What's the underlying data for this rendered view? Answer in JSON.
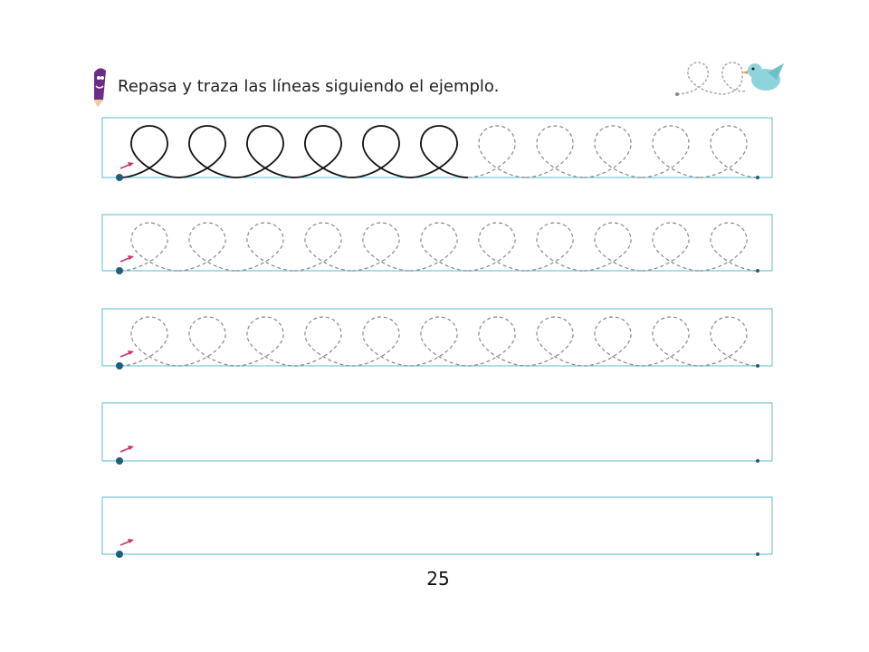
{
  "header": {
    "instruction": "Repasa y traza las líneas siguiendo el ejemplo."
  },
  "footer": {
    "page_number": "25"
  }
}
